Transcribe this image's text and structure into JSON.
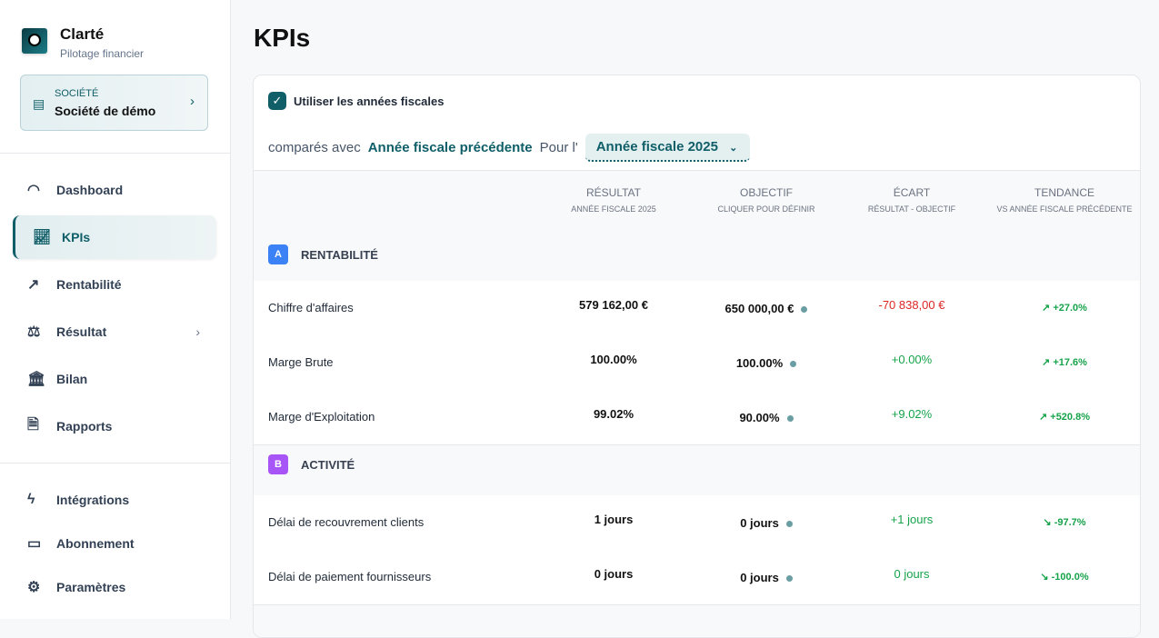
{
  "app": {
    "name": "Clarté",
    "tagline": "Pilotage financier"
  },
  "company": {
    "label": "SOCIÉTÉ",
    "name": "Société de démo"
  },
  "nav": [
    {
      "label": "Dashboard",
      "icon": "gauge-icon"
    },
    {
      "label": "KPIs",
      "icon": "chart-line-icon",
      "active": true
    },
    {
      "label": "Rentabilité",
      "icon": "trending-up-icon"
    },
    {
      "label": "Résultat",
      "icon": "scale-icon",
      "has_children": true
    },
    {
      "label": "Bilan",
      "icon": "bank-icon"
    },
    {
      "label": "Rapports",
      "icon": "file-check-icon"
    }
  ],
  "nav2": [
    {
      "label": "Intégrations",
      "icon": "zap-icon"
    },
    {
      "label": "Abonnement",
      "icon": "credit-card-icon"
    },
    {
      "label": "Paramètres",
      "icon": "gear-icon"
    }
  ],
  "page": {
    "title": "KPIs"
  },
  "filters": {
    "fiscal_checkbox_label": "Utiliser les années fiscales",
    "fiscal_checked": true,
    "compared_with": "comparés avec",
    "comparison": "Année fiscale précédente",
    "for": "Pour l'",
    "period": "Année fiscale 2025"
  },
  "columns": [
    {
      "title": "RÉSULTAT",
      "sub": "ANNÉE FISCALE 2025"
    },
    {
      "title": "OBJECTIF",
      "sub": "CLIQUER POUR DÉFINIR"
    },
    {
      "title": "ÉCART",
      "sub": "RÉSULTAT - OBJECTIF"
    },
    {
      "title": "TENDANCE",
      "sub": "VS ANNÉE FISCALE PRÉCÉDENTE"
    }
  ],
  "sections": [
    {
      "badge": "A",
      "title": "RENTABILITÉ",
      "color": "#3b82f6",
      "rows": [
        {
          "name": "Chiffre d'affaires",
          "result": "579 162,00 €",
          "target": "650 000,00 €",
          "gap": "-70 838,00 €",
          "gap_color": "#dc2626",
          "trend": "+27.0%",
          "trend_dir": "up"
        },
        {
          "name": "Marge Brute",
          "result": "100.00%",
          "target": "100.00%",
          "gap": "+0.00%",
          "gap_color": "#16a34a",
          "trend": "+17.6%",
          "trend_dir": "up"
        },
        {
          "name": "Marge d'Exploitation",
          "result": "99.02%",
          "target": "90.00%",
          "gap": "+9.02%",
          "gap_color": "#16a34a",
          "trend": "+520.8%",
          "trend_dir": "up"
        }
      ]
    },
    {
      "badge": "B",
      "title": "ACTIVITÉ",
      "color": "#a855f7",
      "rows": [
        {
          "name": "Délai de recouvrement clients",
          "result": "1 jours",
          "target": "0 jours",
          "gap": "+1 jours",
          "gap_color": "#16a34a",
          "trend": "-97.7%",
          "trend_dir": "down"
        },
        {
          "name": "Délai de paiement fournisseurs",
          "result": "0 jours",
          "target": "0 jours",
          "gap": "0 jours",
          "gap_color": "#16a34a",
          "trend": "-100.0%",
          "trend_dir": "down"
        }
      ]
    }
  ]
}
